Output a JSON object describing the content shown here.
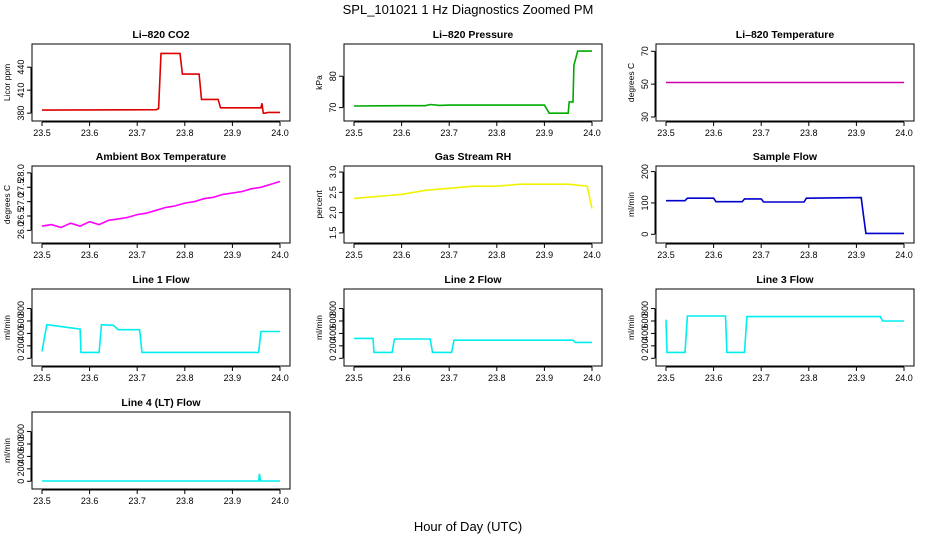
{
  "figure": {
    "title": "SPL_101021  1 Hz Diagnostics Zoomed PM",
    "xlabel": "Hour of Day (UTC)"
  },
  "chart_data": [
    {
      "type": "line",
      "title": "Li–820 CO2",
      "ylabel": "Licor ppm",
      "color": "#dd0000",
      "xlim": [
        23.5,
        24.0
      ],
      "ylim": [
        375,
        465
      ],
      "xticks": [
        "23.5",
        "23.6",
        "23.7",
        "23.8",
        "23.9",
        "24.0"
      ],
      "yticks": [
        {
          "v": 380,
          "label": "380"
        },
        {
          "v": 410,
          "label": "410"
        },
        {
          "v": 440,
          "label": "440"
        }
      ],
      "x": [
        23.5,
        23.74,
        23.745,
        23.75,
        23.755,
        23.79,
        23.795,
        23.83,
        23.835,
        23.87,
        23.875,
        23.96,
        23.962,
        23.965,
        23.968,
        23.975,
        24.0
      ],
      "y": [
        384,
        384.5,
        386,
        458,
        458,
        458,
        431,
        431,
        398,
        398,
        387,
        387,
        393,
        380,
        380,
        381,
        381
      ]
    },
    {
      "type": "line",
      "title": "Li–820 Pressure",
      "ylabel": "kPa",
      "color": "#00aa00",
      "xlim": [
        23.5,
        24.0
      ],
      "ylim": [
        67,
        89
      ],
      "xticks": [
        "23.5",
        "23.6",
        "23.7",
        "23.8",
        "23.9",
        "24.0"
      ],
      "yticks": [
        {
          "v": 70,
          "label": "70"
        },
        {
          "v": 80,
          "label": "80"
        }
      ],
      "x": [
        23.5,
        23.6,
        23.65,
        23.66,
        23.68,
        23.7,
        23.85,
        23.9,
        23.91,
        23.95,
        23.952,
        23.96,
        23.962,
        23.97,
        24.0
      ],
      "y": [
        70.5,
        70.6,
        70.6,
        71.0,
        70.7,
        70.8,
        70.8,
        70.8,
        68.2,
        68.2,
        71.8,
        71.8,
        83.5,
        88,
        88
      ]
    },
    {
      "type": "line",
      "title": "Li–820 Temperature",
      "ylabel": "degrees C",
      "color": "#cc00aa",
      "xlim": [
        23.5,
        24.0
      ],
      "ylim": [
        30,
        72
      ],
      "xticks": [
        "23.5",
        "23.6",
        "23.7",
        "23.8",
        "23.9",
        "24.0"
      ],
      "yticks": [
        {
          "v": 30,
          "label": "30"
        },
        {
          "v": 50,
          "label": "50"
        },
        {
          "v": 70,
          "label": "70"
        }
      ],
      "x": [
        23.5,
        24.0
      ],
      "y": [
        51,
        51
      ]
    },
    {
      "type": "line",
      "title": "Ambient Box Temperature",
      "ylabel": "degrees C",
      "color": "#ff00ff",
      "xlim": [
        23.5,
        24.0
      ],
      "ylim": [
        25.7,
        28.1
      ],
      "xticks": [
        "23.5",
        "23.6",
        "23.7",
        "23.8",
        "23.9",
        "24.0"
      ],
      "yticks": [
        {
          "v": 26.0,
          "label": "26.0"
        },
        {
          "v": 26.5,
          "label": "26.5"
        },
        {
          "v": 27.0,
          "label": "27.0"
        },
        {
          "v": 27.5,
          "label": "27.5"
        },
        {
          "v": 28.0,
          "label": "28.0"
        }
      ],
      "x": [
        23.5,
        23.52,
        23.54,
        23.56,
        23.58,
        23.6,
        23.62,
        23.64,
        23.66,
        23.68,
        23.7,
        23.72,
        23.74,
        23.76,
        23.78,
        23.8,
        23.82,
        23.84,
        23.86,
        23.88,
        23.9,
        23.92,
        23.94,
        23.96,
        23.98,
        24.0
      ],
      "y": [
        26.15,
        26.2,
        26.1,
        26.25,
        26.15,
        26.3,
        26.2,
        26.35,
        26.4,
        26.45,
        26.55,
        26.6,
        26.7,
        26.8,
        26.85,
        26.95,
        27.0,
        27.1,
        27.15,
        27.25,
        27.3,
        27.35,
        27.45,
        27.5,
        27.6,
        27.7
      ]
    },
    {
      "type": "line",
      "title": "Gas Stream RH",
      "ylabel": "percent",
      "color": "#f2f200",
      "xlim": [
        23.5,
        24.0
      ],
      "ylim": [
        1.35,
        3.05
      ],
      "xticks": [
        "23.5",
        "23.6",
        "23.7",
        "23.8",
        "23.9",
        "24.0"
      ],
      "yticks": [
        {
          "v": 1.5,
          "label": "1.5"
        },
        {
          "v": 2.0,
          "label": "2.0"
        },
        {
          "v": 2.5,
          "label": "2.5"
        },
        {
          "v": 3.0,
          "label": "3.0"
        }
      ],
      "x": [
        23.5,
        23.55,
        23.6,
        23.65,
        23.7,
        23.75,
        23.8,
        23.85,
        23.9,
        23.95,
        23.99,
        24.0
      ],
      "y": [
        2.35,
        2.4,
        2.45,
        2.55,
        2.6,
        2.65,
        2.65,
        2.7,
        2.7,
        2.7,
        2.65,
        2.1
      ]
    },
    {
      "type": "line",
      "title": "Sample Flow",
      "ylabel": "ml/min",
      "color": "#0000cc",
      "xlim": [
        23.5,
        24.0
      ],
      "ylim": [
        -15,
        205
      ],
      "xticks": [
        "23.5",
        "23.6",
        "23.7",
        "23.8",
        "23.9",
        "24.0"
      ],
      "yticks": [
        {
          "v": 0,
          "label": "0"
        },
        {
          "v": 100,
          "label": "100"
        },
        {
          "v": 200,
          "label": "200"
        }
      ],
      "x": [
        23.5,
        23.54,
        23.545,
        23.6,
        23.605,
        23.66,
        23.665,
        23.7,
        23.705,
        23.79,
        23.795,
        23.91,
        23.915,
        23.92,
        24.0
      ],
      "y": [
        107,
        107,
        115,
        115,
        104,
        104,
        113,
        113,
        103,
        103,
        115,
        117,
        60,
        3,
        3
      ]
    },
    {
      "type": "line",
      "title": "Line 1 Flow",
      "ylabel": "ml/min",
      "color": "#00eeee",
      "xlim": [
        23.5,
        24.0
      ],
      "ylim": [
        -60,
        1050
      ],
      "xticks": [
        "23.5",
        "23.6",
        "23.7",
        "23.8",
        "23.9",
        "24.0"
      ],
      "yticks": [
        {
          "v": 0,
          "label": "0"
        },
        {
          "v": 200,
          "label": "200"
        },
        {
          "v": 400,
          "label": "400"
        },
        {
          "v": 600,
          "label": "600"
        },
        {
          "v": 800,
          "label": "800"
        }
      ],
      "x": [
        23.5,
        23.505,
        23.51,
        23.58,
        23.582,
        23.62,
        23.625,
        23.65,
        23.66,
        23.705,
        23.71,
        23.955,
        23.96,
        24.0
      ],
      "y": [
        110,
        330,
        540,
        470,
        95,
        95,
        540,
        530,
        460,
        460,
        95,
        95,
        430,
        430
      ]
    },
    {
      "type": "line",
      "title": "Line 2 Flow",
      "ylabel": "ml/min",
      "color": "#00eeee",
      "xlim": [
        23.5,
        24.0
      ],
      "ylim": [
        -60,
        1050
      ],
      "xticks": [
        "23.5",
        "23.6",
        "23.7",
        "23.8",
        "23.9",
        "24.0"
      ],
      "yticks": [
        {
          "v": 0,
          "label": "0"
        },
        {
          "v": 200,
          "label": "200"
        },
        {
          "v": 400,
          "label": "400"
        },
        {
          "v": 600,
          "label": "600"
        },
        {
          "v": 800,
          "label": "800"
        }
      ],
      "x": [
        23.5,
        23.54,
        23.542,
        23.58,
        23.585,
        23.66,
        23.665,
        23.705,
        23.71,
        23.96,
        23.965,
        24.0
      ],
      "y": [
        320,
        320,
        95,
        95,
        310,
        310,
        95,
        95,
        290,
        290,
        255,
        255
      ]
    },
    {
      "type": "line",
      "title": "Line 3 Flow",
      "ylabel": "ml/min",
      "color": "#00eeee",
      "xlim": [
        23.5,
        24.0
      ],
      "ylim": [
        -60,
        1050
      ],
      "xticks": [
        "23.5",
        "23.6",
        "23.7",
        "23.8",
        "23.9",
        "24.0"
      ],
      "yticks": [
        {
          "v": 0,
          "label": "0"
        },
        {
          "v": 200,
          "label": "200"
        },
        {
          "v": 400,
          "label": "400"
        },
        {
          "v": 600,
          "label": "600"
        },
        {
          "v": 800,
          "label": "800"
        }
      ],
      "x": [
        23.5,
        23.502,
        23.505,
        23.54,
        23.545,
        23.625,
        23.628,
        23.665,
        23.67,
        23.95,
        23.955,
        24.0
      ],
      "y": [
        620,
        95,
        95,
        95,
        680,
        680,
        95,
        95,
        670,
        670,
        600,
        600
      ]
    },
    {
      "type": "line",
      "title": "Line 4 (LT) Flow",
      "ylabel": "ml/min",
      "color": "#00eeee",
      "xlim": [
        23.5,
        24.0
      ],
      "ylim": [
        -60,
        1050
      ],
      "xticks": [
        "23.5",
        "23.6",
        "23.7",
        "23.8",
        "23.9",
        "24.0"
      ],
      "yticks": [
        {
          "v": 0,
          "label": "0"
        },
        {
          "v": 200,
          "label": "200"
        },
        {
          "v": 400,
          "label": "400"
        },
        {
          "v": 600,
          "label": "600"
        },
        {
          "v": 800,
          "label": "800"
        }
      ],
      "x": [
        23.5,
        23.955,
        23.957,
        23.959,
        23.962,
        24.0
      ],
      "y": [
        5,
        5,
        120,
        5,
        5,
        5
      ]
    }
  ]
}
